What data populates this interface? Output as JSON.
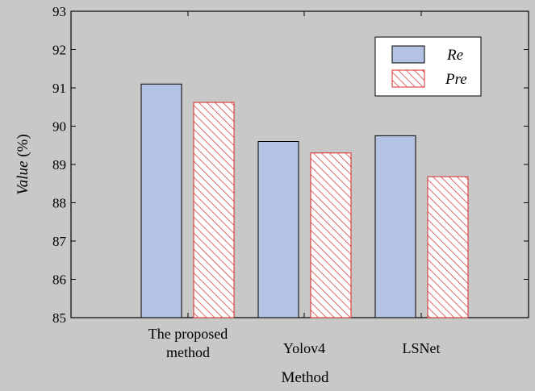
{
  "chart_data": {
    "type": "bar",
    "categories": [
      [
        "The proposed",
        "method"
      ],
      [
        "Yolov4"
      ],
      [
        "LSNet"
      ]
    ],
    "series": [
      {
        "name": "Re",
        "values": [
          91.1,
          89.6,
          89.75
        ],
        "color": "#b4c3e3",
        "pattern": "solid"
      },
      {
        "name": "Pre",
        "values": [
          90.62,
          89.3,
          88.68
        ],
        "color": "#d62828",
        "pattern": "hatched"
      }
    ],
    "xlabel": "Method",
    "ylabel_italic": "Value",
    "ylabel_unit": " (%)",
    "ylim": [
      85,
      93
    ],
    "yticks": [
      85,
      86,
      87,
      88,
      89,
      90,
      91,
      92,
      93
    ],
    "legend_position": "top-right",
    "grid": false
  }
}
